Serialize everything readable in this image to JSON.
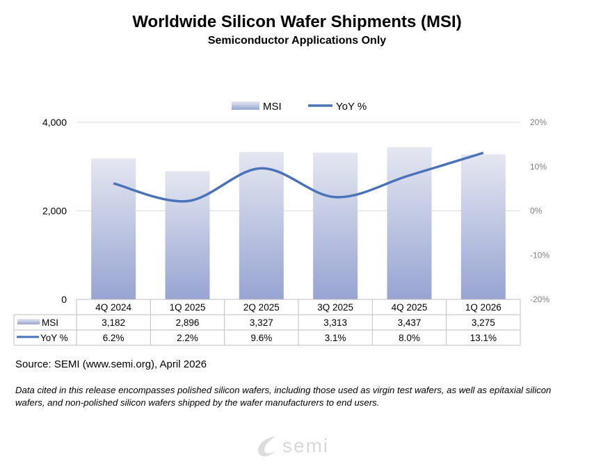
{
  "chart_data": {
    "type": "bar",
    "title": "Worldwide Silicon Wafer Shipments (MSI)",
    "subtitle": "Semiconductor Applications Only",
    "categories": [
      "4Q 2024",
      "1Q 2025",
      "2Q 2025",
      "3Q 2025",
      "4Q 2025",
      "1Q 2026"
    ],
    "series": [
      {
        "name": "MSI",
        "type": "bar",
        "axis": "left",
        "values": [
          3182,
          2896,
          3327,
          3313,
          3437,
          3275
        ],
        "labels": [
          "3,182",
          "2,896",
          "3,327",
          "3,313",
          "3,437",
          "3,275"
        ],
        "color": "#a4b0d8"
      },
      {
        "name": "YoY %",
        "type": "line",
        "axis": "right",
        "values": [
          6.2,
          2.2,
          9.6,
          3.1,
          8.0,
          13.1
        ],
        "labels": [
          "6.2%",
          "2.2%",
          "9.6%",
          "3.1%",
          "8.0%",
          "13.1%"
        ],
        "color": "#4a72b8"
      }
    ],
    "left_axis": {
      "ylim": [
        0,
        4000
      ],
      "ticks": [
        0,
        2000,
        4000
      ],
      "tick_labels": [
        "0",
        "2,000",
        "4,000"
      ]
    },
    "right_axis": {
      "ylim": [
        -20,
        20
      ],
      "ticks": [
        -20,
        -10,
        0,
        10,
        20
      ],
      "tick_labels": [
        "-20%",
        "-10%",
        "0%",
        "10%",
        "20%"
      ]
    },
    "grid": true,
    "legend": "top",
    "data_table": true
  },
  "footer": {
    "source": "Source: SEMI (www.semi.org), April 2026",
    "note": "Data cited in this release encompasses polished silicon wafers, including those used as virgin test wafers, as well as epitaxial silicon wafers, and non-polished silicon wafers shipped by the wafer manufacturers to end users.",
    "logo": "semi"
  }
}
